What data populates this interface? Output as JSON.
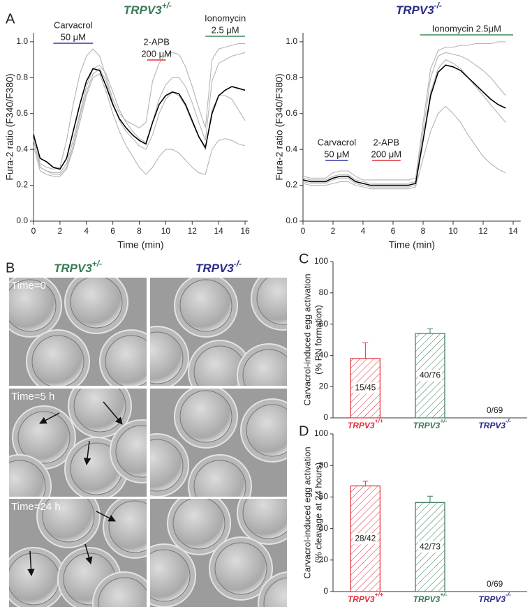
{
  "chart_data": [
    {
      "type": "line",
      "panel": "A",
      "title": "TRPV3",
      "title_superscript": "+/-",
      "title_color": "#3a7a55",
      "xlabel": "Time (min)",
      "ylabel": "Fura-2 ratio (F340/F380)",
      "xlim": [
        0,
        16.2
      ],
      "xticks": [
        0,
        2,
        4,
        6,
        8,
        10,
        12,
        14,
        16
      ],
      "ylim": [
        0,
        1.05
      ],
      "yticks": [
        {
          "value": 0,
          "label": "0.0"
        },
        0.2,
        0.4,
        0.6,
        0.8,
        {
          "value": 1,
          "label": "1.0"
        }
      ],
      "x": [
        0,
        0.5,
        1,
        1.5,
        2,
        2.5,
        3,
        3.5,
        4,
        4.5,
        5,
        5.5,
        6,
        6.5,
        7,
        7.5,
        8,
        8.5,
        9,
        9.5,
        10,
        10.5,
        11,
        11.5,
        12,
        12.5,
        13,
        13.5,
        14,
        14.5,
        15,
        15.5,
        16
      ],
      "series": [
        {
          "color": "#b4b4b4",
          "values": [
            0.5,
            0.32,
            0.3,
            0.29,
            0.3,
            0.45,
            0.65,
            0.82,
            0.92,
            0.96,
            0.92,
            0.8,
            0.68,
            0.6,
            0.56,
            0.54,
            0.52,
            0.55,
            0.78,
            0.88,
            0.93,
            0.94,
            0.93,
            0.86,
            0.75,
            0.63,
            0.52,
            0.9,
            0.96,
            0.97,
            0.98,
            0.99,
            0.99
          ]
        },
        {
          "color": "#b4b4b4",
          "values": [
            0.45,
            0.3,
            0.28,
            0.27,
            0.27,
            0.32,
            0.45,
            0.6,
            0.75,
            0.85,
            0.87,
            0.82,
            0.72,
            0.62,
            0.55,
            0.5,
            0.46,
            0.44,
            0.55,
            0.68,
            0.76,
            0.8,
            0.8,
            0.75,
            0.66,
            0.55,
            0.45,
            0.78,
            0.88,
            0.9,
            0.92,
            0.93,
            0.94
          ]
        },
        {
          "color": "#b4b4b4",
          "values": [
            0.46,
            0.3,
            0.28,
            0.26,
            0.26,
            0.3,
            0.42,
            0.58,
            0.72,
            0.82,
            0.85,
            0.78,
            0.66,
            0.56,
            0.5,
            0.46,
            0.42,
            0.4,
            0.48,
            0.6,
            0.68,
            0.72,
            0.7,
            0.64,
            0.55,
            0.47,
            0.4,
            0.62,
            0.7,
            0.7,
            0.68,
            0.62,
            0.56
          ]
        },
        {
          "color": "#b4b4b4",
          "values": [
            0.42,
            0.28,
            0.26,
            0.25,
            0.25,
            0.29,
            0.4,
            0.55,
            0.7,
            0.8,
            0.82,
            0.72,
            0.6,
            0.5,
            0.42,
            0.36,
            0.3,
            0.26,
            0.3,
            0.36,
            0.4,
            0.4,
            0.38,
            0.34,
            0.3,
            0.27,
            0.26,
            0.4,
            0.45,
            0.46,
            0.45,
            0.43,
            0.42
          ]
        },
        {
          "color": "#000000",
          "values": [
            0.48,
            0.35,
            0.33,
            0.3,
            0.29,
            0.35,
            0.5,
            0.65,
            0.78,
            0.85,
            0.84,
            0.75,
            0.65,
            0.57,
            0.52,
            0.48,
            0.45,
            0.43,
            0.55,
            0.65,
            0.7,
            0.72,
            0.71,
            0.65,
            0.56,
            0.47,
            0.41,
            0.6,
            0.7,
            0.73,
            0.75,
            0.74,
            0.73
          ]
        }
      ],
      "annotations": [
        {
          "lines": [
            "Carvacrol",
            "50 μM"
          ],
          "color": "#3333aa",
          "x": [
            1.5,
            4.5
          ]
        },
        {
          "lines": [
            "2-APB",
            "200 μM"
          ],
          "color": "#e0303a",
          "x": [
            8.6,
            10
          ]
        },
        {
          "lines": [
            "Ionomycin",
            "2.5 μM"
          ],
          "color": "#3a8a5a",
          "x": [
            13,
            16
          ]
        }
      ]
    },
    {
      "type": "line",
      "title": "TRPV3",
      "title_superscript": "-/-",
      "title_color": "#2a2a8a",
      "xlabel": "Time (min)",
      "ylabel": "Fura-2 ratio (F340/F380)",
      "xlim": [
        0,
        14.5
      ],
      "xticks": [
        0,
        2,
        4,
        6,
        8,
        10,
        12,
        14
      ],
      "ylim": [
        0,
        1.05
      ],
      "yticks": [
        {
          "value": 0,
          "label": "0.0"
        },
        0.2,
        0.4,
        0.6,
        0.8,
        {
          "value": 1,
          "label": "1.0"
        }
      ],
      "x": [
        0,
        0.5,
        1,
        1.5,
        2,
        2.5,
        3,
        3.5,
        4,
        4.5,
        5,
        5.5,
        6,
        6.5,
        7,
        7.5,
        8,
        8.5,
        9,
        9.5,
        10,
        10.5,
        11,
        11.5,
        12,
        12.5,
        13,
        13.5
      ],
      "series": [
        {
          "color": "#b4b4b4",
          "values": [
            0.25,
            0.24,
            0.24,
            0.24,
            0.27,
            0.28,
            0.28,
            0.25,
            0.23,
            0.23,
            0.23,
            0.23,
            0.23,
            0.23,
            0.23,
            0.24,
            0.55,
            0.85,
            0.95,
            0.97,
            0.97,
            0.98,
            0.98,
            0.99,
            0.99,
            0.99,
            1.0,
            1.0
          ]
        },
        {
          "color": "#b4b4b4",
          "values": [
            0.24,
            0.23,
            0.23,
            0.23,
            0.25,
            0.26,
            0.26,
            0.23,
            0.22,
            0.21,
            0.21,
            0.21,
            0.21,
            0.21,
            0.21,
            0.22,
            0.5,
            0.8,
            0.92,
            0.94,
            0.93,
            0.92,
            0.9,
            0.87,
            0.84,
            0.8,
            0.75,
            0.7
          ]
        },
        {
          "color": "#b4b4b4",
          "values": [
            0.22,
            0.21,
            0.21,
            0.21,
            0.23,
            0.24,
            0.24,
            0.21,
            0.2,
            0.19,
            0.19,
            0.19,
            0.19,
            0.19,
            0.19,
            0.2,
            0.45,
            0.72,
            0.85,
            0.9,
            0.88,
            0.85,
            0.8,
            0.75,
            0.7,
            0.65,
            0.6,
            0.55
          ]
        },
        {
          "color": "#b4b4b4",
          "values": [
            0.21,
            0.2,
            0.2,
            0.2,
            0.21,
            0.22,
            0.22,
            0.2,
            0.19,
            0.18,
            0.18,
            0.18,
            0.18,
            0.18,
            0.18,
            0.19,
            0.35,
            0.5,
            0.6,
            0.64,
            0.6,
            0.55,
            0.48,
            0.42,
            0.36,
            0.32,
            0.29,
            0.27
          ]
        },
        {
          "color": "#000000",
          "values": [
            0.23,
            0.22,
            0.22,
            0.22,
            0.24,
            0.25,
            0.25,
            0.22,
            0.21,
            0.2,
            0.2,
            0.2,
            0.2,
            0.2,
            0.2,
            0.21,
            0.45,
            0.7,
            0.83,
            0.87,
            0.86,
            0.84,
            0.8,
            0.76,
            0.72,
            0.68,
            0.65,
            0.63
          ]
        }
      ],
      "annotations": [
        {
          "lines": [
            "Carvacrol",
            "50 μM"
          ],
          "color": "#3333aa",
          "x": [
            1.5,
            3
          ]
        },
        {
          "lines": [
            "2-APB",
            "200 μM"
          ],
          "color": "#e0303a",
          "x": [
            4.6,
            6.5
          ]
        },
        {
          "lines": [
            "Ionomycin 2.5μM"
          ],
          "color": "#3a8a5a",
          "x": [
            7.8,
            14
          ]
        }
      ]
    },
    {
      "type": "bar",
      "panel": "C",
      "ylabel": [
        "Carvacrol-induced egg activation",
        "(% PN formation)"
      ],
      "categories": [
        "TRPV3",
        "TRPV3",
        "TRPV3"
      ],
      "category_superscripts": [
        "+/+",
        "+/-",
        "-/-"
      ],
      "colors": [
        "#e0303a",
        "#3a7a55",
        "#2a2a8a"
      ],
      "values": [
        38,
        54,
        0
      ],
      "errors": [
        10,
        3,
        0
      ],
      "bar_labels": [
        "15/45",
        "40/76",
        "0/69"
      ],
      "ylim": [
        0,
        100
      ],
      "yticks": [
        0,
        20,
        40,
        60,
        80,
        100
      ]
    },
    {
      "type": "bar",
      "panel": "D",
      "ylabel": [
        "Carvacrol-induced egg activation",
        "(% cleavage at 24 hours)"
      ],
      "categories": [
        "TRPV3",
        "TRPV3",
        "TRPV3"
      ],
      "category_superscripts": [
        "+/+",
        "+/-",
        "-/-"
      ],
      "colors": [
        "#e0303a",
        "#3a7a55",
        "#2a2a8a"
      ],
      "values": [
        67,
        56.5,
        0
      ],
      "errors": [
        3,
        4,
        0
      ],
      "bar_labels": [
        "28/42",
        "42/73",
        "0/69"
      ],
      "ylim": [
        0,
        100
      ],
      "yticks": [
        0,
        20,
        40,
        60,
        80,
        100
      ]
    }
  ],
  "panel_b": {
    "panel": "B",
    "columns": [
      {
        "title": "TRPV3",
        "superscript": "+/-",
        "color": "#3a7a55"
      },
      {
        "title": "TRPV3",
        "superscript": "-/-",
        "color": "#2a2a8a"
      }
    ],
    "rows": [
      "Time=0",
      "Time=5 h",
      "Time=24 h"
    ]
  }
}
